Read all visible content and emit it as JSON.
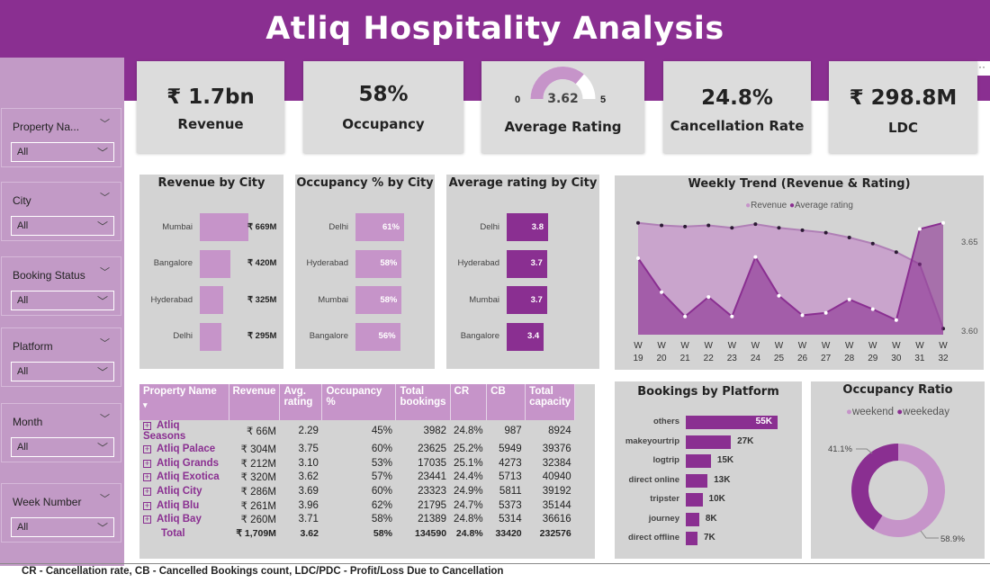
{
  "header": {
    "title": "Atliq Hospitality Analysis"
  },
  "slicers": [
    {
      "label": "Property Na...",
      "value": "All"
    },
    {
      "label": "City",
      "value": "All"
    },
    {
      "label": "Booking Status",
      "value": "All"
    },
    {
      "label": "Platform",
      "value": "All"
    },
    {
      "label": "Month",
      "value": "All"
    },
    {
      "label": "Week Number",
      "value": "All"
    }
  ],
  "kpis": {
    "revenue": {
      "value": "₹ 1.7bn",
      "label": "Revenue"
    },
    "occupancy": {
      "value": "58%",
      "label": "Occupancy"
    },
    "rating": {
      "value": "3.62",
      "label": "Average Rating",
      "min": "0",
      "max": "5",
      "gauge_fraction": 0.724
    },
    "cancellation": {
      "value": "24.8%",
      "label": "Cancellation Rate"
    },
    "ldc": {
      "value": "₹ 298.8M",
      "label": "LDC"
    }
  },
  "colors": {
    "purple_dark": "#8a2f91",
    "purple_light": "#c694c9",
    "panel_bg": "#d3d3d3"
  },
  "chart_data": [
    {
      "type": "bar",
      "orientation": "horizontal",
      "title": "Revenue by City",
      "categories": [
        "Mumbai",
        "Bangalore",
        "Hyderabad",
        "Delhi"
      ],
      "values": [
        669,
        420,
        325,
        295
      ],
      "labels": [
        "₹ 669M",
        "₹ 420M",
        "₹ 325M",
        "₹ 295M"
      ],
      "color": "#c694c9"
    },
    {
      "type": "bar",
      "orientation": "horizontal",
      "title": "Occupancy % by City",
      "categories": [
        "Delhi",
        "Hyderabad",
        "Mumbai",
        "Bangalore"
      ],
      "values": [
        61,
        58,
        58,
        56
      ],
      "labels": [
        "61%",
        "58%",
        "58%",
        "56%"
      ],
      "color": "#c694c9"
    },
    {
      "type": "bar",
      "orientation": "horizontal",
      "title": "Average rating by City",
      "categories": [
        "Delhi",
        "Hyderabad",
        "Mumbai",
        "Bangalore"
      ],
      "values": [
        3.8,
        3.7,
        3.7,
        3.4
      ],
      "labels": [
        "3.8",
        "3.7",
        "3.7",
        "3.4"
      ],
      "color": "#8a2f91"
    },
    {
      "type": "area",
      "title": "Weekly Trend (Revenue & Rating)",
      "x_top": [
        "W",
        "W",
        "W",
        "W",
        "W",
        "W",
        "W",
        "W",
        "W",
        "W",
        "W",
        "W",
        "W",
        "W"
      ],
      "x": [
        "19",
        "20",
        "21",
        "22",
        "23",
        "24",
        "25",
        "26",
        "27",
        "28",
        "29",
        "30",
        "31",
        "32"
      ],
      "y_ticks": [
        "3.65",
        "3.60"
      ],
      "legend": "top-center",
      "series": [
        {
          "name": "Revenue",
          "color": "#c694c9",
          "values": [
            0.92,
            0.9,
            0.89,
            0.9,
            0.88,
            0.91,
            0.88,
            0.86,
            0.84,
            0.8,
            0.75,
            0.68,
            0.58,
            0.05
          ]
        },
        {
          "name": "Average rating",
          "color": "#8a2f91",
          "values": [
            0.63,
            0.35,
            0.15,
            0.31,
            0.15,
            0.64,
            0.32,
            0.16,
            0.18,
            0.29,
            0.21,
            0.12,
            0.87,
            0.92
          ]
        }
      ]
    },
    {
      "type": "bar",
      "orientation": "horizontal",
      "title": "Bookings by Platform",
      "categories": [
        "others",
        "makeyourtrip",
        "logtrip",
        "direct online",
        "tripster",
        "journey",
        "direct offline"
      ],
      "values": [
        55,
        27,
        15,
        13,
        10,
        8,
        7
      ],
      "labels": [
        "55K",
        "27K",
        "15K",
        "13K",
        "10K",
        "8K",
        "7K"
      ],
      "color": "#8a2f91"
    },
    {
      "type": "pie",
      "title": "Occupancy Ratio",
      "legend_entries": [
        {
          "name": "weekend",
          "color": "#c694c9"
        },
        {
          "name": "weekeday",
          "color": "#8a2f91"
        }
      ],
      "slices": [
        {
          "name": "weekend",
          "value": 58.9,
          "label": "58.9%",
          "color": "#c694c9"
        },
        {
          "name": "weekeday",
          "value": 41.1,
          "label": "41.1%",
          "color": "#8a2f91"
        }
      ]
    }
  ],
  "property_table": {
    "headers": [
      "Property Name",
      "Revenue",
      "Avg. rating",
      "Occupancy %",
      "Total bookings",
      "CR",
      "CB",
      "Total capacity"
    ],
    "rows": [
      [
        "Atliq Seasons",
        "₹ 66M",
        "2.29",
        "45%",
        "3982",
        "24.8%",
        "987",
        "8924"
      ],
      [
        "Atliq Palace",
        "₹ 304M",
        "3.75",
        "60%",
        "23625",
        "25.2%",
        "5949",
        "39376"
      ],
      [
        "Atliq Grands",
        "₹ 212M",
        "3.10",
        "53%",
        "17035",
        "25.1%",
        "4273",
        "32384"
      ],
      [
        "Atliq Exotica",
        "₹ 320M",
        "3.62",
        "57%",
        "23441",
        "24.4%",
        "5713",
        "40940"
      ],
      [
        "Atliq City",
        "₹ 286M",
        "3.69",
        "60%",
        "23323",
        "24.9%",
        "5811",
        "39192"
      ],
      [
        "Atliq Blu",
        "₹ 261M",
        "3.96",
        "62%",
        "21795",
        "24.7%",
        "5373",
        "35144"
      ],
      [
        "Atliq Bay",
        "₹ 260M",
        "3.71",
        "58%",
        "21389",
        "24.8%",
        "5314",
        "36616"
      ]
    ],
    "total": [
      "Total",
      "₹ 1,709M",
      "3.62",
      "58%",
      "134590",
      "24.8%",
      "33420",
      "232576"
    ]
  },
  "footnote": "CR - Cancellation rate, CB - Cancelled Bookings count, LDC/PDC - Profit/Loss Due to Cancellation"
}
